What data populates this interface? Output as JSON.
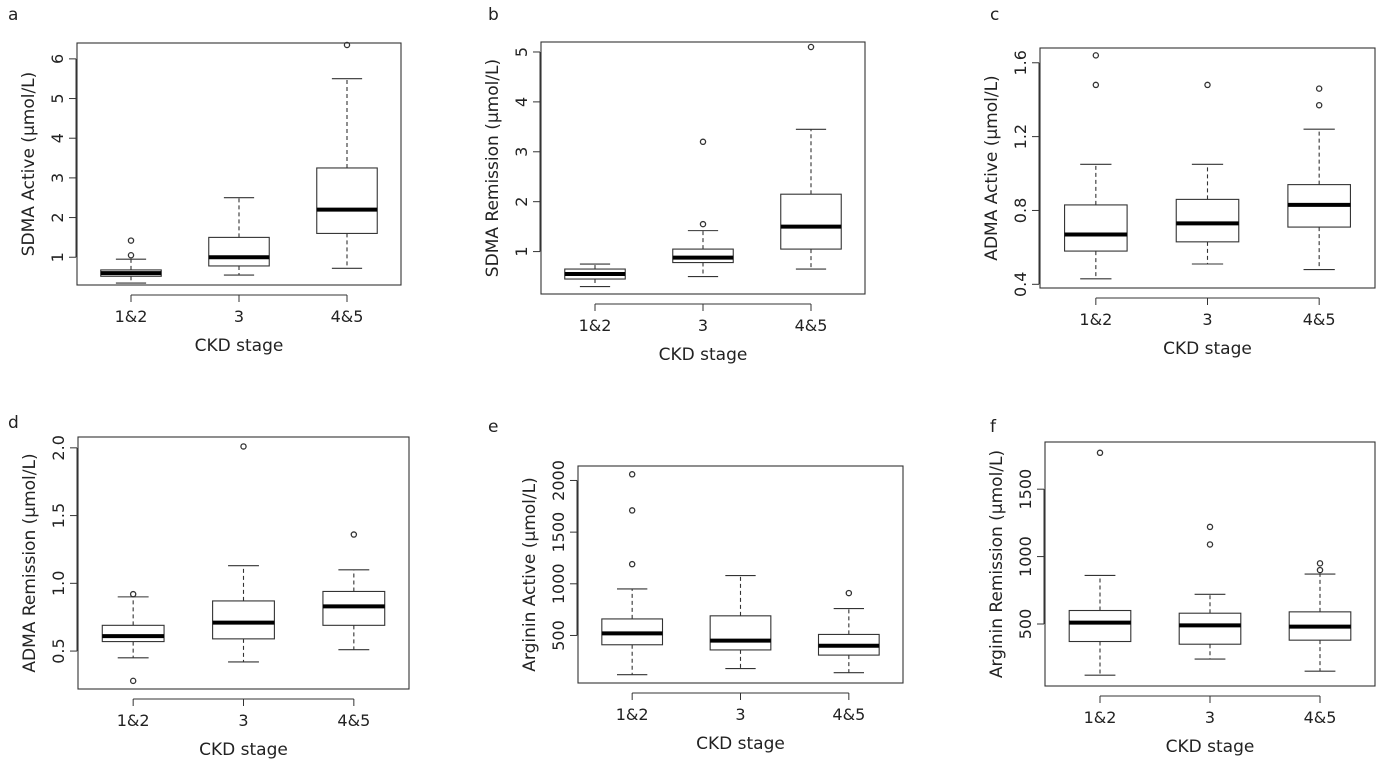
{
  "chart_data": [
    {
      "panel": "a",
      "type": "box",
      "xlabel": "CKD stage",
      "ylabel": "SDMA Active (µmol/L)",
      "categories": [
        "1&2",
        "3",
        "4&5"
      ],
      "yticks": [
        "1",
        "2",
        "3",
        "4",
        "5",
        "6"
      ],
      "ylim": [
        0.3,
        6.4
      ],
      "boxes": [
        {
          "category": "1&2",
          "min": 0.35,
          "q1": 0.52,
          "median": 0.6,
          "q3": 0.68,
          "max": 0.95,
          "outliers": [
            1.05,
            1.42
          ]
        },
        {
          "category": "3",
          "min": 0.55,
          "q1": 0.78,
          "median": 1.0,
          "q3": 1.5,
          "max": 2.5,
          "outliers": []
        },
        {
          "category": "4&5",
          "min": 0.72,
          "q1": 1.6,
          "median": 2.2,
          "q3": 3.25,
          "max": 5.5,
          "outliers": [
            6.35
          ]
        }
      ]
    },
    {
      "panel": "b",
      "type": "box",
      "xlabel": "CKD stage",
      "ylabel": "SDMA Remission (µmol/L)",
      "categories": [
        "1&2",
        "3",
        "4&5"
      ],
      "yticks": [
        "1",
        "2",
        "3",
        "4",
        "5"
      ],
      "ylim": [
        0.15,
        5.2
      ],
      "boxes": [
        {
          "category": "1&2",
          "min": 0.3,
          "q1": 0.45,
          "median": 0.55,
          "q3": 0.65,
          "max": 0.75,
          "outliers": []
        },
        {
          "category": "3",
          "min": 0.5,
          "q1": 0.78,
          "median": 0.88,
          "q3": 1.05,
          "max": 1.42,
          "outliers": [
            1.55,
            3.2
          ]
        },
        {
          "category": "4&5",
          "min": 0.65,
          "q1": 1.05,
          "median": 1.5,
          "q3": 2.15,
          "max": 3.45,
          "outliers": [
            5.1
          ]
        }
      ]
    },
    {
      "panel": "c",
      "type": "box",
      "xlabel": "CKD stage",
      "ylabel": "ADMA Active (µmol/L)",
      "categories": [
        "1&2",
        "3",
        "4&5"
      ],
      "yticks": [
        "0.4",
        "0.8",
        "1.2",
        "1.6"
      ],
      "ylim": [
        0.38,
        1.68
      ],
      "boxes": [
        {
          "category": "1&2",
          "min": 0.43,
          "q1": 0.58,
          "median": 0.67,
          "q3": 0.83,
          "max": 1.05,
          "outliers": [
            1.48,
            1.64
          ]
        },
        {
          "category": "3",
          "min": 0.51,
          "q1": 0.63,
          "median": 0.73,
          "q3": 0.86,
          "max": 1.05,
          "outliers": [
            1.48
          ]
        },
        {
          "category": "4&5",
          "min": 0.48,
          "q1": 0.71,
          "median": 0.83,
          "q3": 0.94,
          "max": 1.24,
          "outliers": [
            1.37,
            1.46
          ]
        }
      ]
    },
    {
      "panel": "d",
      "type": "box",
      "xlabel": "CKD stage",
      "ylabel": "ADMA Remission (µmol/L)",
      "categories": [
        "1&2",
        "3",
        "4&5"
      ],
      "yticks": [
        "0.5",
        "1.0",
        "1.5",
        "2.0"
      ],
      "ylim": [
        0.22,
        2.08
      ],
      "boxes": [
        {
          "category": "1&2",
          "min": 0.45,
          "q1": 0.57,
          "median": 0.61,
          "q3": 0.69,
          "max": 0.9,
          "outliers": [
            0.92,
            0.28
          ]
        },
        {
          "category": "3",
          "min": 0.42,
          "q1": 0.59,
          "median": 0.71,
          "q3": 0.87,
          "max": 1.13,
          "outliers": [
            2.01
          ]
        },
        {
          "category": "4&5",
          "min": 0.51,
          "q1": 0.69,
          "median": 0.83,
          "q3": 0.94,
          "max": 1.1,
          "outliers": [
            1.36
          ]
        }
      ]
    },
    {
      "panel": "e",
      "type": "box",
      "xlabel": "CKD stage",
      "ylabel": "Arginin Active (µmol/L)",
      "categories": [
        "1&2",
        "3",
        "4&5"
      ],
      "yticks": [
        "500",
        "1000",
        "1500",
        "2000"
      ],
      "ylim": [
        40,
        2140
      ],
      "boxes": [
        {
          "category": "1&2",
          "min": 120,
          "q1": 410,
          "median": 520,
          "q3": 660,
          "max": 950,
          "outliers": [
            1190,
            1710,
            2060
          ]
        },
        {
          "category": "3",
          "min": 180,
          "q1": 360,
          "median": 450,
          "q3": 690,
          "max": 1080,
          "outliers": []
        },
        {
          "category": "4&5",
          "min": 140,
          "q1": 310,
          "median": 400,
          "q3": 510,
          "max": 760,
          "outliers": [
            910
          ]
        }
      ]
    },
    {
      "panel": "f",
      "type": "box",
      "xlabel": "CKD stage",
      "ylabel": "Arginin Remission (µmol/L)",
      "categories": [
        "1&2",
        "3",
        "4&5"
      ],
      "yticks": [
        "500",
        "1000",
        "1500"
      ],
      "ylim": [
        40,
        1850
      ],
      "boxes": [
        {
          "category": "1&2",
          "min": 120,
          "q1": 370,
          "median": 510,
          "q3": 600,
          "max": 860,
          "outliers": [
            1770
          ]
        },
        {
          "category": "3",
          "min": 240,
          "q1": 350,
          "median": 490,
          "q3": 580,
          "max": 720,
          "outliers": [
            1090,
            1220
          ]
        },
        {
          "category": "4&5",
          "min": 150,
          "q1": 380,
          "median": 480,
          "q3": 590,
          "max": 870,
          "outliers": [
            900,
            950
          ]
        }
      ]
    }
  ]
}
